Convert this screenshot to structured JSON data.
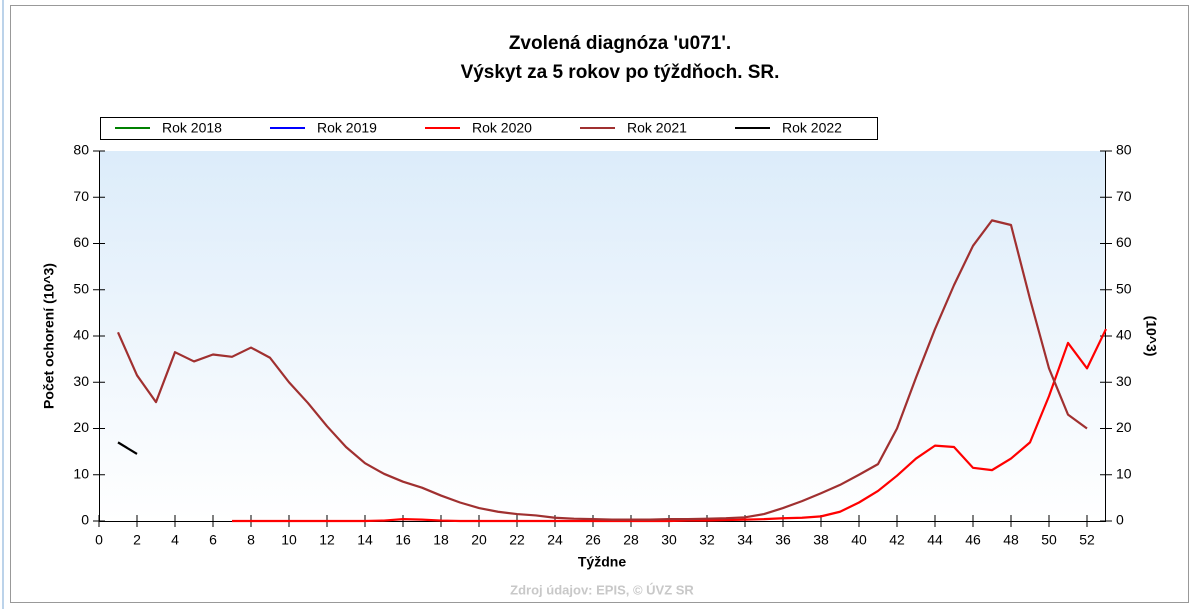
{
  "chart_data": {
    "type": "line",
    "title": "Zvolená diagnóza 'u071'.",
    "subtitle": "Výskyt za 5 rokov po týždňoch. SR.",
    "x_label": "Týždne",
    "y_label": "Počet ochorení (10^3)",
    "y2_label": "(10^3)",
    "source": "Zdroj údajov: EPIS, © ÚVZ SR",
    "x": [
      1,
      2,
      3,
      4,
      5,
      6,
      7,
      8,
      9,
      10,
      11,
      12,
      13,
      14,
      15,
      16,
      17,
      18,
      19,
      20,
      21,
      22,
      23,
      24,
      25,
      26,
      27,
      28,
      29,
      30,
      31,
      32,
      33,
      34,
      35,
      36,
      37,
      38,
      39,
      40,
      41,
      42,
      43,
      44,
      45,
      46,
      47,
      48,
      49,
      50,
      51,
      52,
      53
    ],
    "series": [
      {
        "name": "Rok 2018",
        "color": "#008000",
        "values": [
          null,
          null,
          null,
          null,
          null,
          null,
          null,
          null,
          null,
          null,
          null,
          null,
          null,
          null,
          null,
          null,
          null,
          null,
          null,
          null,
          null,
          null,
          null,
          null,
          null,
          null,
          null,
          null,
          null,
          null,
          null,
          null,
          null,
          null,
          null,
          null,
          null,
          null,
          null,
          null,
          null,
          null,
          null,
          null,
          null,
          null,
          null,
          null,
          null,
          null,
          null,
          null,
          null
        ]
      },
      {
        "name": "Rok 2019",
        "color": "#0000ff",
        "values": [
          null,
          null,
          null,
          null,
          null,
          null,
          null,
          null,
          null,
          null,
          null,
          null,
          null,
          null,
          null,
          null,
          null,
          null,
          null,
          null,
          null,
          null,
          null,
          null,
          null,
          null,
          null,
          null,
          null,
          null,
          null,
          null,
          null,
          null,
          null,
          null,
          null,
          null,
          null,
          null,
          null,
          null,
          null,
          null,
          null,
          null,
          null,
          null,
          null,
          null,
          null,
          null,
          null
        ]
      },
      {
        "name": "Rok 2020",
        "color": "#ff0000",
        "values": [
          null,
          null,
          null,
          null,
          null,
          null,
          0,
          0,
          0,
          0,
          0,
          0,
          0,
          0,
          0.1,
          0.4,
          0.3,
          0.1,
          0,
          0,
          0,
          0,
          0,
          0,
          0,
          0,
          0,
          0,
          0,
          0,
          0.1,
          0.1,
          0.2,
          0.3,
          0.4,
          0.6,
          0.7,
          1,
          2,
          4,
          6.5,
          9.8,
          13.5,
          16.3,
          16,
          11.5,
          11,
          13.5,
          17,
          27,
          38.5,
          33,
          41.5
        ]
      },
      {
        "name": "Rok 2021",
        "color": "#a03030",
        "values": [
          40.8,
          31.5,
          25.7,
          36.5,
          34.5,
          36,
          35.5,
          37.5,
          35.3,
          30,
          25.5,
          20.5,
          16,
          12.5,
          10.2,
          8.5,
          7.2,
          5.5,
          4,
          2.8,
          2,
          1.5,
          1.2,
          0.7,
          0.5,
          0.4,
          0.3,
          0.3,
          0.3,
          0.4,
          0.4,
          0.5,
          0.6,
          0.8,
          1.5,
          2.8,
          4.3,
          6,
          7.8,
          10,
          12.3,
          20,
          31,
          41.5,
          51,
          59.5,
          65,
          64,
          48,
          33,
          23,
          20,
          null
        ]
      },
      {
        "name": "Rok 2022",
        "color": "#000000",
        "values": [
          17,
          14.5,
          null,
          null,
          null,
          null,
          null,
          null,
          null,
          null,
          null,
          null,
          null,
          null,
          null,
          null,
          null,
          null,
          null,
          null,
          null,
          null,
          null,
          null,
          null,
          null,
          null,
          null,
          null,
          null,
          null,
          null,
          null,
          null,
          null,
          null,
          null,
          null,
          null,
          null,
          null,
          null,
          null,
          null,
          null,
          null,
          null,
          null,
          null,
          null,
          null,
          null,
          null
        ]
      }
    ],
    "xlim": [
      0,
      53
    ],
    "xticks": [
      0,
      2,
      4,
      6,
      8,
      10,
      12,
      14,
      16,
      18,
      20,
      22,
      24,
      26,
      28,
      30,
      32,
      34,
      36,
      38,
      40,
      42,
      44,
      46,
      48,
      50,
      52
    ],
    "ylim": [
      0,
      80
    ],
    "yticks": [
      0,
      10,
      20,
      30,
      40,
      50,
      60,
      70,
      80
    ],
    "y2lim": [
      0,
      80
    ],
    "y2ticks": [
      0,
      10,
      20,
      30,
      40,
      50,
      60,
      70,
      80
    ],
    "legend": "top"
  }
}
